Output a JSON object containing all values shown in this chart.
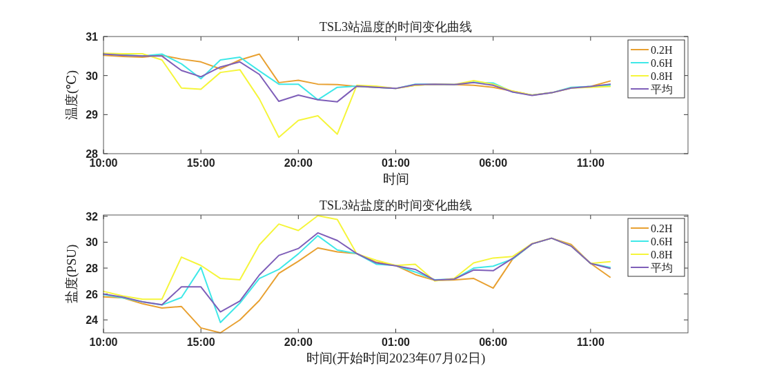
{
  "chart_data": [
    {
      "type": "line",
      "title": "TSL3站温度的时间变化曲线",
      "xlabel": "时间",
      "ylabel": "温度(℃)",
      "legend": "top right",
      "grid": false,
      "x": [
        "2023-07-02T10:00",
        "2023-07-02T11:00",
        "2023-07-02T12:00",
        "2023-07-02T13:00",
        "2023-07-02T14:00",
        "2023-07-02T15:00",
        "2023-07-02T16:00",
        "2023-07-02T17:00",
        "2023-07-02T18:00",
        "2023-07-02T19:00",
        "2023-07-02T20:00",
        "2023-07-02T21:00",
        "2023-07-02T22:00",
        "2023-07-02T23:00",
        "2023-07-03T00:00",
        "2023-07-03T01:00",
        "2023-07-03T02:00",
        "2023-07-03T03:00",
        "2023-07-03T04:00",
        "2023-07-03T05:00",
        "2023-07-03T06:00",
        "2023-07-03T07:00",
        "2023-07-03T08:00",
        "2023-07-03T09:00",
        "2023-07-03T10:00",
        "2023-07-03T11:00",
        "2023-07-03T12:00"
      ],
      "xlim": [
        "2023-07-02T10:00",
        "2023-07-03T16:00"
      ],
      "xticks": [
        {
          "value": "2023-07-02T10:00",
          "label": "10:00"
        },
        {
          "value": "2023-07-02T15:00",
          "label": "15:00"
        },
        {
          "value": "2023-07-02T20:00",
          "label": "20:00"
        },
        {
          "value": "2023-07-03T01:00",
          "label": "01:00"
        },
        {
          "value": "2023-07-03T06:00",
          "label": "06:00"
        },
        {
          "value": "2023-07-03T11:00",
          "label": "11:00"
        }
      ],
      "ylim": [
        28,
        31
      ],
      "yticks": [
        28,
        29,
        30,
        31
      ],
      "series": [
        {
          "name": "0.2H",
          "color": "#e8a030",
          "values": [
            30.52,
            30.49,
            30.47,
            30.52,
            30.42,
            30.35,
            30.17,
            30.4,
            30.55,
            29.82,
            29.88,
            29.78,
            29.77,
            29.72,
            29.7,
            29.67,
            29.75,
            29.78,
            29.77,
            29.75,
            29.7,
            29.6,
            29.5,
            29.56,
            29.68,
            29.72,
            29.86
          ]
        },
        {
          "name": "0.6H",
          "color": "#3ee8e8",
          "values": [
            30.55,
            30.53,
            30.5,
            30.55,
            30.3,
            29.92,
            30.4,
            30.47,
            30.12,
            29.78,
            29.78,
            29.38,
            29.7,
            29.73,
            29.7,
            29.67,
            29.78,
            29.78,
            29.77,
            29.83,
            29.81,
            29.58,
            29.5,
            29.56,
            29.7,
            29.72,
            29.75
          ]
        },
        {
          "name": "0.8H",
          "color": "#f5f53a",
          "values": [
            30.57,
            30.56,
            30.56,
            30.4,
            29.68,
            29.65,
            30.08,
            30.15,
            29.4,
            28.42,
            28.85,
            28.97,
            28.5,
            29.75,
            29.73,
            29.67,
            29.75,
            29.78,
            29.77,
            29.87,
            29.78,
            29.6,
            29.5,
            29.56,
            29.68,
            29.7,
            29.72
          ]
        },
        {
          "name": "平均",
          "color": "#7e5eb8",
          "values": [
            30.55,
            30.52,
            30.5,
            30.5,
            30.13,
            29.97,
            30.22,
            30.35,
            30.03,
            29.34,
            29.5,
            29.38,
            29.33,
            29.73,
            29.7,
            29.67,
            29.77,
            29.78,
            29.77,
            29.82,
            29.75,
            29.58,
            29.49,
            29.56,
            29.68,
            29.72,
            29.78
          ]
        }
      ]
    },
    {
      "type": "line",
      "title": "TSL3站盐度的时间变化曲线",
      "xlabel": "时间(开始时间2023年07月02日)",
      "ylabel": "盐度(PSU)",
      "legend": "top right",
      "grid": false,
      "x": [
        "2023-07-02T10:00",
        "2023-07-02T11:00",
        "2023-07-02T12:00",
        "2023-07-02T13:00",
        "2023-07-02T14:00",
        "2023-07-02T15:00",
        "2023-07-02T16:00",
        "2023-07-02T17:00",
        "2023-07-02T18:00",
        "2023-07-02T19:00",
        "2023-07-02T20:00",
        "2023-07-02T21:00",
        "2023-07-02T22:00",
        "2023-07-02T23:00",
        "2023-07-03T00:00",
        "2023-07-03T01:00",
        "2023-07-03T02:00",
        "2023-07-03T03:00",
        "2023-07-03T04:00",
        "2023-07-03T05:00",
        "2023-07-03T06:00",
        "2023-07-03T07:00",
        "2023-07-03T08:00",
        "2023-07-03T09:00",
        "2023-07-03T10:00",
        "2023-07-03T11:00",
        "2023-07-03T12:00"
      ],
      "xlim": [
        "2023-07-02T10:00",
        "2023-07-03T16:00"
      ],
      "xticks": [
        {
          "value": "2023-07-02T10:00",
          "label": "10:00"
        },
        {
          "value": "2023-07-02T15:00",
          "label": "15:00"
        },
        {
          "value": "2023-07-02T20:00",
          "label": "20:00"
        },
        {
          "value": "2023-07-03T01:00",
          "label": "01:00"
        },
        {
          "value": "2023-07-03T06:00",
          "label": "06:00"
        },
        {
          "value": "2023-07-03T11:00",
          "label": "11:00"
        }
      ],
      "ylim": [
        23,
        32.1
      ],
      "yticks": [
        24,
        26,
        28,
        30,
        32
      ],
      "series": [
        {
          "name": "0.2H",
          "color": "#e8a030",
          "values": [
            25.78,
            25.7,
            25.25,
            24.92,
            25.03,
            23.38,
            23.0,
            24.0,
            25.5,
            27.6,
            28.53,
            29.56,
            29.25,
            29.12,
            28.45,
            28.2,
            27.5,
            27.05,
            27.08,
            27.2,
            26.45,
            28.7,
            29.87,
            30.31,
            29.83,
            28.36,
            27.3
          ]
        },
        {
          "name": "0.6H",
          "color": "#3ee8e8",
          "values": [
            25.95,
            25.7,
            25.4,
            25.15,
            25.73,
            28.05,
            23.8,
            25.3,
            27.2,
            27.9,
            29.1,
            30.5,
            29.4,
            29.12,
            28.3,
            28.2,
            27.7,
            27.1,
            27.15,
            28.0,
            28.15,
            28.7,
            29.87,
            30.31,
            29.72,
            28.36,
            28.05
          ]
        },
        {
          "name": "0.8H",
          "color": "#f5f53a",
          "values": [
            26.2,
            25.85,
            25.6,
            25.6,
            28.85,
            28.2,
            27.2,
            27.1,
            29.8,
            31.4,
            30.9,
            32.05,
            31.75,
            29.1,
            28.6,
            28.2,
            28.3,
            27.0,
            27.2,
            28.4,
            28.78,
            28.9,
            29.9,
            30.31,
            29.72,
            28.36,
            28.5
          ]
        },
        {
          "name": "平均",
          "color": "#7e5eb8",
          "values": [
            26.0,
            25.75,
            25.4,
            25.17,
            26.55,
            26.55,
            24.62,
            25.45,
            27.47,
            28.98,
            29.51,
            30.72,
            30.13,
            29.12,
            28.4,
            28.18,
            27.9,
            27.07,
            27.15,
            27.85,
            27.8,
            28.75,
            29.87,
            30.31,
            29.7,
            28.36,
            27.98
          ]
        }
      ]
    }
  ]
}
